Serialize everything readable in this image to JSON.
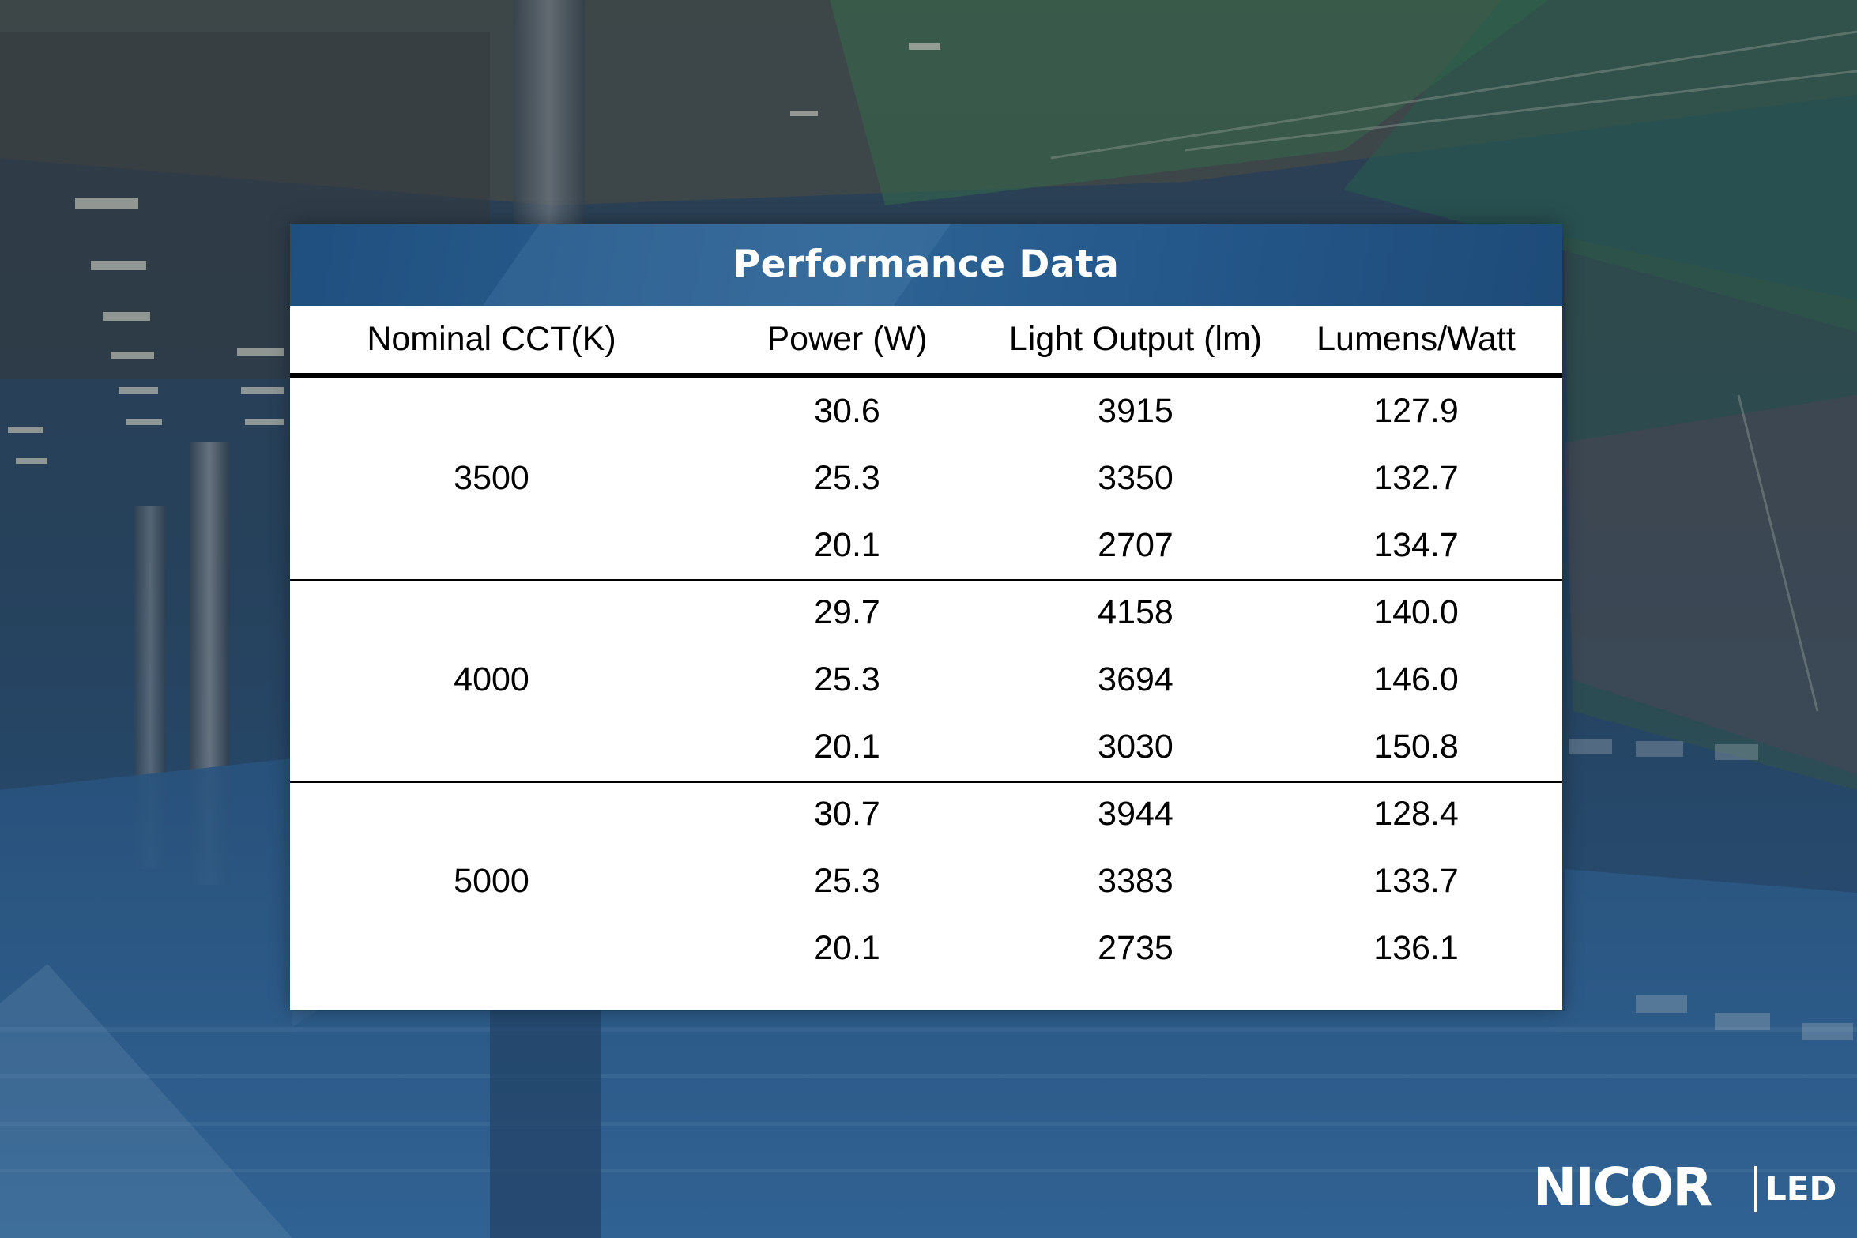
{
  "table": {
    "title": "Performance Data",
    "columns": [
      "Nominal CCT(K)",
      "Power (W)",
      "Light Output (lm)",
      "Lumens/Watt"
    ],
    "groups": [
      {
        "cct": "3500",
        "rows": [
          {
            "power": "30.6",
            "output": "3915",
            "efficacy": "127.9"
          },
          {
            "power": "25.3",
            "output": "3350",
            "efficacy": "132.7"
          },
          {
            "power": "20.1",
            "output": "2707",
            "efficacy": "134.7"
          }
        ]
      },
      {
        "cct": "4000",
        "rows": [
          {
            "power": "29.7",
            "output": "4158",
            "efficacy": "140.0"
          },
          {
            "power": "25.3",
            "output": "3694",
            "efficacy": "146.0"
          },
          {
            "power": "20.1",
            "output": "3030",
            "efficacy": "150.8"
          }
        ]
      },
      {
        "cct": "5000",
        "rows": [
          {
            "power": "30.7",
            "output": "3944",
            "efficacy": "128.4"
          },
          {
            "power": "25.3",
            "output": "3383",
            "efficacy": "133.7"
          },
          {
            "power": "20.1",
            "output": "2735",
            "efficacy": "136.1"
          }
        ]
      }
    ]
  },
  "brand": {
    "logo_text": "NICOR",
    "logo_suffix": "LED"
  },
  "colors": {
    "header_blue": "#245a8c",
    "background_blue": "#2b5a8a",
    "background_green": "#2f6a4a"
  }
}
